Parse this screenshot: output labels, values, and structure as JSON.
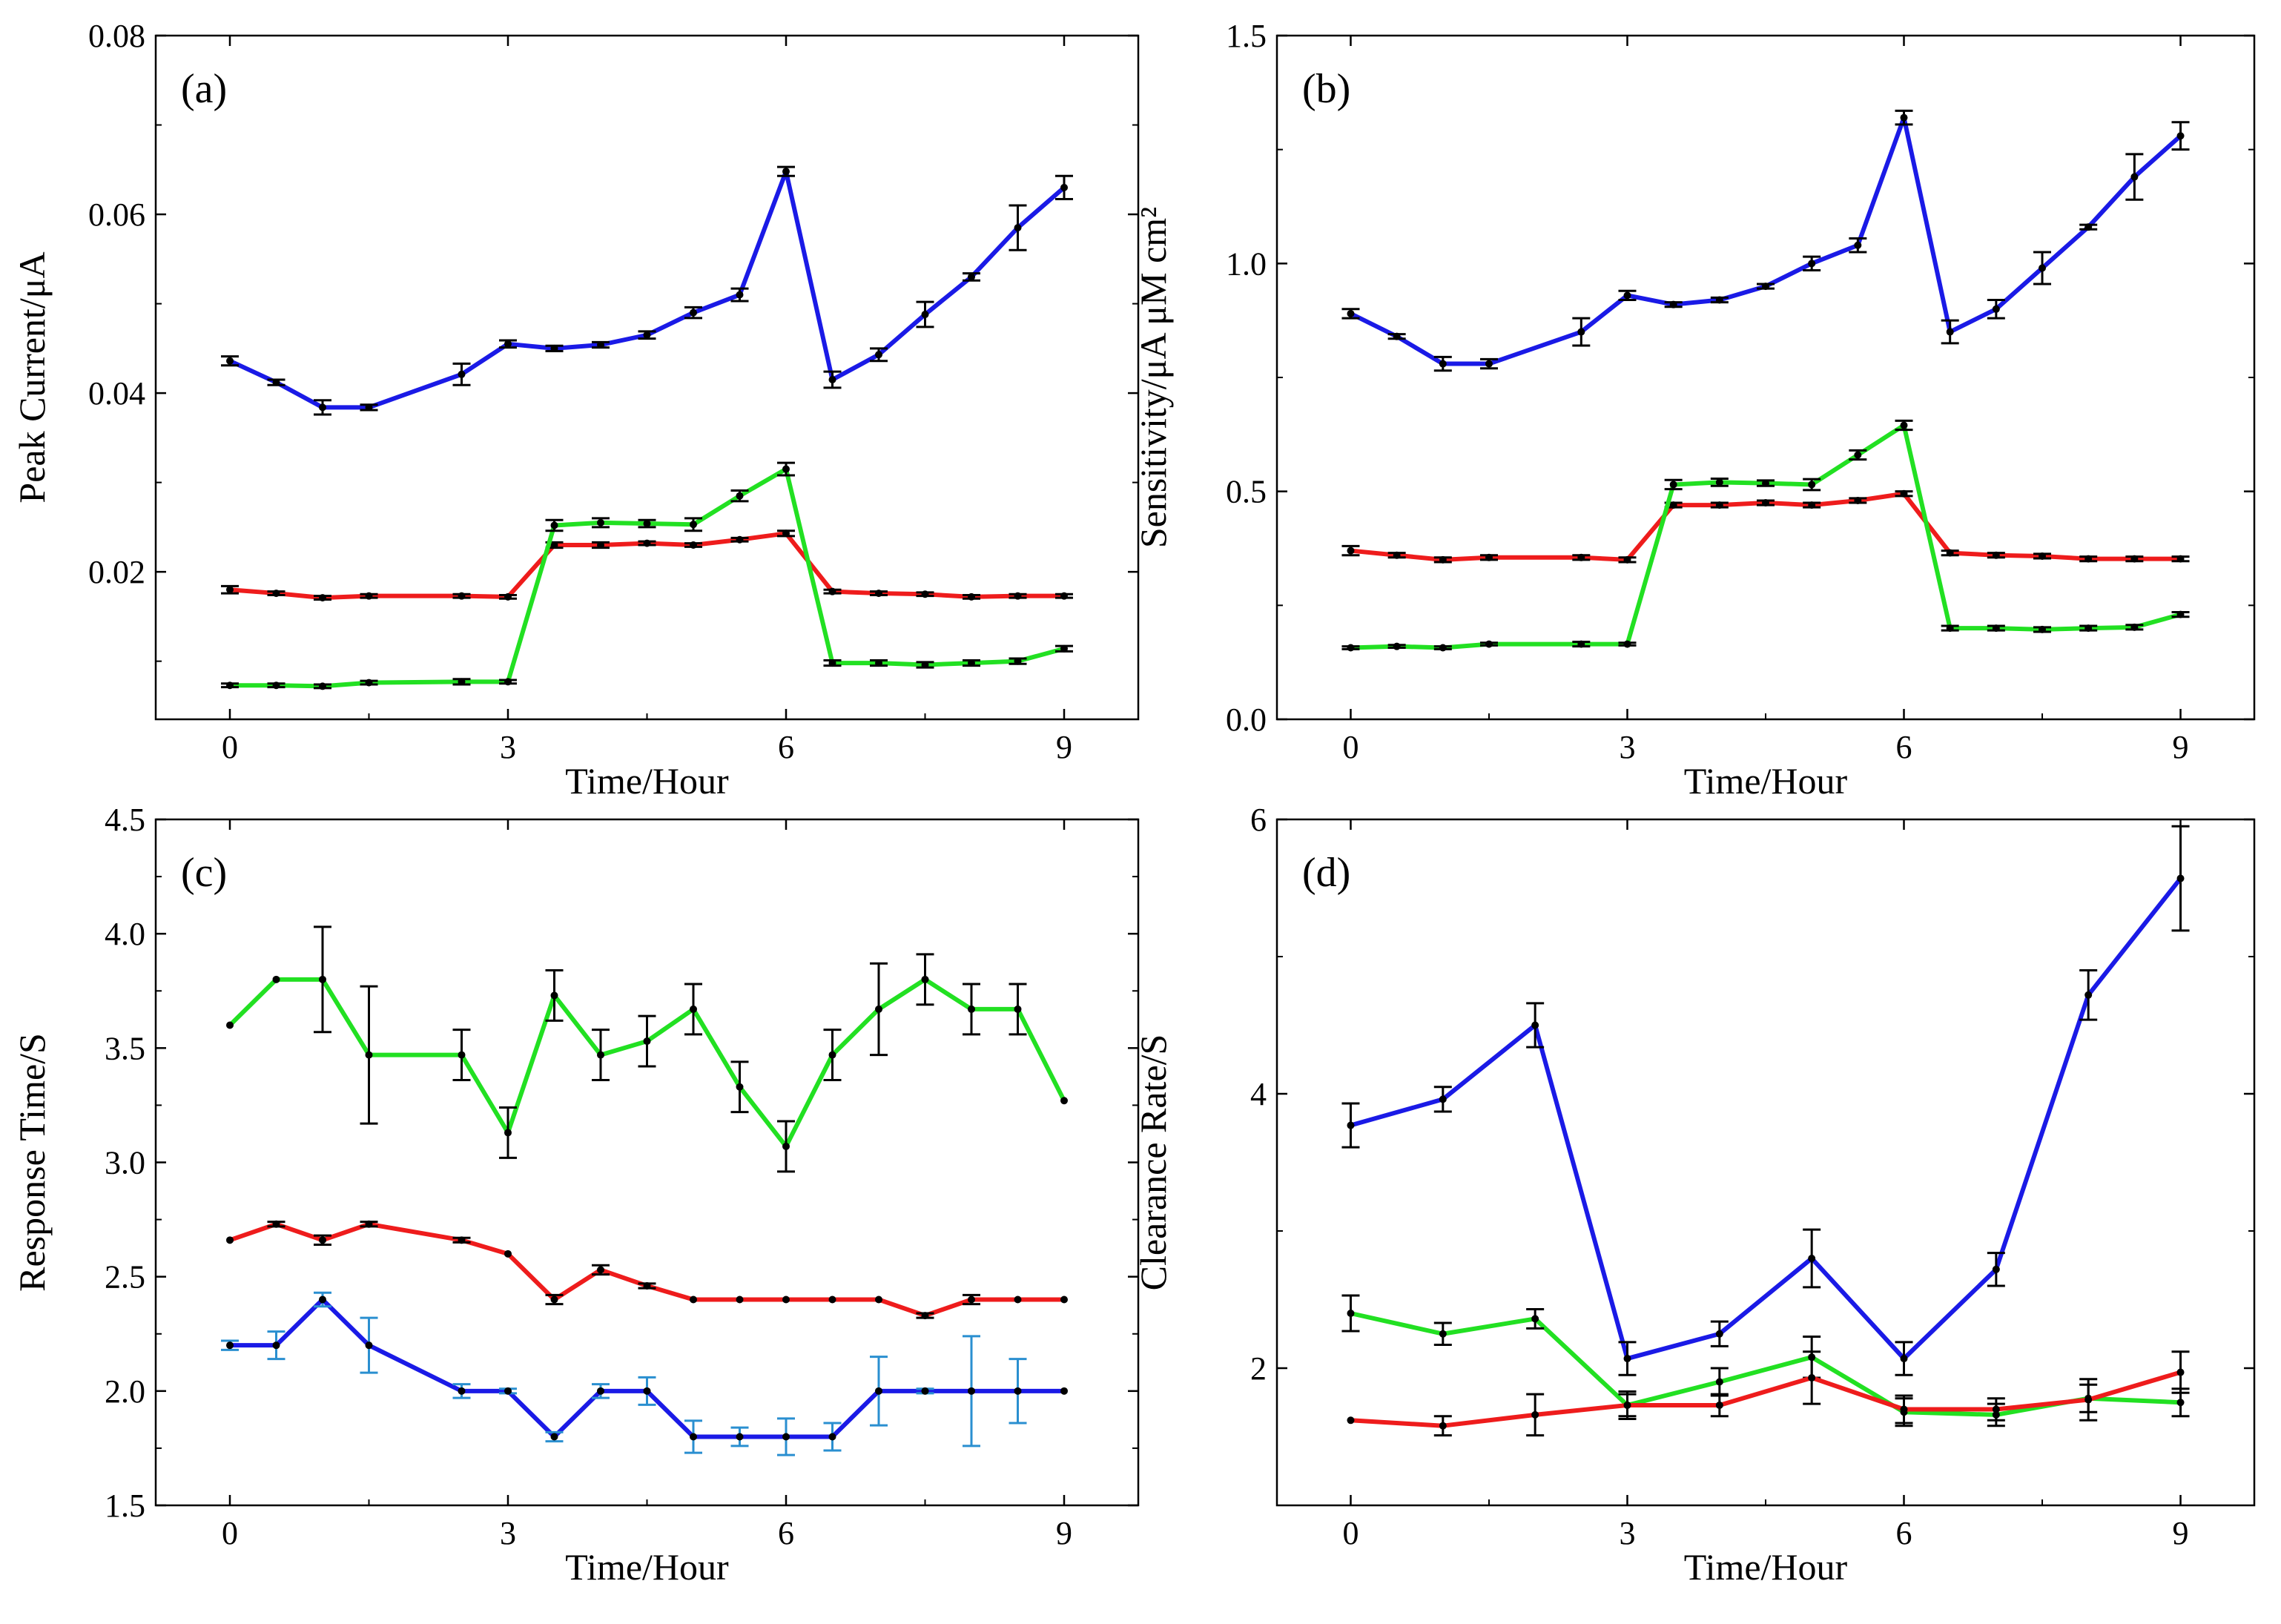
{
  "chart_data": [
    {
      "type": "line",
      "panel_label": "(a)",
      "xlabel": "Time/Hour",
      "ylabel": "Peak Current/μA",
      "xlim": [
        -0.8,
        9.8
      ],
      "ylim": [
        0.0035,
        0.08
      ],
      "xticks": [
        0,
        3,
        6,
        9
      ],
      "xtick_labels": [
        "0",
        "3",
        "6",
        "9"
      ],
      "yticks": [
        0.02,
        0.04,
        0.06,
        0.08
      ],
      "ytick_labels": [
        "0.02",
        "0.04",
        "0.06",
        "0.08"
      ],
      "error_color": "#000000",
      "series": [
        {
          "name": "blue",
          "color": "#1a1ae6",
          "x": [
            0,
            0.5,
            1,
            1.5,
            2.5,
            3,
            3.5,
            4,
            4.5,
            5,
            5.5,
            6,
            6.5,
            7,
            7.5,
            8,
            8.5,
            9
          ],
          "y": [
            0.0436,
            0.0412,
            0.0384,
            0.0384,
            0.0421,
            0.0455,
            0.045,
            0.0454,
            0.0465,
            0.049,
            0.051,
            0.0648,
            0.0415,
            0.0443,
            0.0488,
            0.053,
            0.0585,
            0.063
          ],
          "err": [
            0.0005,
            0.0003,
            0.0008,
            0.0003,
            0.0012,
            0.0004,
            0.0003,
            0.0003,
            0.0004,
            0.0006,
            0.0007,
            0.0005,
            0.0009,
            0.0007,
            0.0014,
            0.0004,
            0.0025,
            0.0013
          ]
        },
        {
          "name": "red",
          "color": "#ee1c1c",
          "x": [
            0,
            0.5,
            1,
            1.5,
            2.5,
            3,
            3.5,
            4,
            4.5,
            5,
            5.5,
            6,
            6.5,
            7,
            7.5,
            8,
            8.5,
            9
          ],
          "y": [
            0.018,
            0.0176,
            0.0171,
            0.0173,
            0.0173,
            0.0172,
            0.023,
            0.023,
            0.0232,
            0.023,
            0.0236,
            0.0243,
            0.0178,
            0.0176,
            0.0175,
            0.0172,
            0.0173,
            0.0173
          ],
          "err": [
            0.0004,
            0.0002,
            0.0002,
            0.0002,
            0.0002,
            0.0002,
            0.0003,
            0.0003,
            0.0002,
            0.0002,
            0.0002,
            0.0003,
            0.0002,
            0.0002,
            0.0002,
            0.0002,
            0.0002,
            0.0002
          ]
        },
        {
          "name": "green",
          "color": "#22e022",
          "x": [
            0,
            0.5,
            1,
            1.5,
            2.5,
            3,
            3.5,
            4,
            4.5,
            5,
            5.5,
            6,
            6.5,
            7,
            7.5,
            8,
            8.5,
            9
          ],
          "y": [
            0.0073,
            0.0073,
            0.0072,
            0.0076,
            0.0077,
            0.0077,
            0.0252,
            0.0255,
            0.0254,
            0.0253,
            0.0285,
            0.0315,
            0.0098,
            0.0098,
            0.0096,
            0.0098,
            0.01,
            0.0114
          ],
          "err": [
            0.0002,
            0.0002,
            0.0002,
            0.0002,
            0.0003,
            0.0002,
            0.0006,
            0.0005,
            0.0004,
            0.0007,
            0.0006,
            0.0007,
            0.0003,
            0.0003,
            0.0003,
            0.0003,
            0.0003,
            0.0003
          ]
        }
      ]
    },
    {
      "type": "line",
      "panel_label": "(b)",
      "xlabel": "Time/Hour",
      "ylabel": "Sensitivity/μA μM cm²",
      "xlim": [
        -0.8,
        9.8
      ],
      "ylim": [
        0,
        1.5
      ],
      "xticks": [
        0,
        3,
        6,
        9
      ],
      "xtick_labels": [
        "0",
        "3",
        "6",
        "9"
      ],
      "yticks": [
        0,
        0.5,
        1.0,
        1.5
      ],
      "ytick_labels": [
        "0.0",
        "0.5",
        "1.0",
        "1.5"
      ],
      "error_color": "#000000",
      "series": [
        {
          "name": "blue",
          "color": "#1a1ae6",
          "x": [
            0,
            0.5,
            1,
            1.5,
            2.5,
            3,
            3.5,
            4,
            4.5,
            5,
            5.5,
            6,
            6.5,
            7,
            7.5,
            8,
            8.5,
            9
          ],
          "y": [
            0.89,
            0.84,
            0.78,
            0.78,
            0.85,
            0.93,
            0.91,
            0.92,
            0.95,
            1.0,
            1.04,
            1.32,
            0.85,
            0.9,
            0.99,
            1.08,
            1.19,
            1.28
          ],
          "err": [
            0.01,
            0.005,
            0.015,
            0.01,
            0.03,
            0.01,
            0.005,
            0.005,
            0.005,
            0.015,
            0.015,
            0.015,
            0.025,
            0.02,
            0.035,
            0.005,
            0.05,
            0.03
          ]
        },
        {
          "name": "red",
          "color": "#ee1c1c",
          "x": [
            0,
            0.5,
            1,
            1.5,
            2.5,
            3,
            3.5,
            4,
            4.5,
            5,
            5.5,
            6,
            6.5,
            7,
            7.5,
            8,
            8.5,
            9
          ],
          "y": [
            0.37,
            0.36,
            0.35,
            0.355,
            0.355,
            0.35,
            0.47,
            0.47,
            0.475,
            0.47,
            0.48,
            0.495,
            0.365,
            0.36,
            0.358,
            0.352,
            0.352,
            0.352
          ],
          "err": [
            0.01,
            0.005,
            0.005,
            0.005,
            0.005,
            0.005,
            0.005,
            0.005,
            0.005,
            0.005,
            0.005,
            0.005,
            0.005,
            0.005,
            0.005,
            0.005,
            0.005,
            0.005
          ]
        },
        {
          "name": "green",
          "color": "#22e022",
          "x": [
            0,
            0.5,
            1,
            1.5,
            2.5,
            3,
            3.5,
            4,
            4.5,
            5,
            5.5,
            6,
            6.5,
            7,
            7.5,
            8,
            8.5,
            9
          ],
          "y": [
            0.157,
            0.16,
            0.157,
            0.165,
            0.165,
            0.165,
            0.515,
            0.52,
            0.518,
            0.515,
            0.58,
            0.645,
            0.2,
            0.2,
            0.197,
            0.2,
            0.202,
            0.23
          ],
          "err": [
            0.003,
            0.003,
            0.003,
            0.003,
            0.005,
            0.003,
            0.01,
            0.008,
            0.006,
            0.012,
            0.01,
            0.01,
            0.005,
            0.005,
            0.005,
            0.005,
            0.005,
            0.005
          ]
        }
      ]
    },
    {
      "type": "line",
      "panel_label": "(c)",
      "xlabel": "Time/Hour",
      "ylabel": "Response Time/S",
      "xlim": [
        -0.8,
        9.8
      ],
      "ylim": [
        1.5,
        4.5
      ],
      "xticks": [
        0,
        3,
        6,
        9
      ],
      "xtick_labels": [
        "0",
        "3",
        "6",
        "9"
      ],
      "yticks": [
        1.5,
        2.0,
        2.5,
        3.0,
        3.5,
        4.0,
        4.5
      ],
      "ytick_labels": [
        "1.5",
        "2.0",
        "2.5",
        "3.0",
        "3.5",
        "4.0",
        "4.5"
      ],
      "series": [
        {
          "name": "green",
          "color": "#22e022",
          "error_color": "#000000",
          "x": [
            0,
            0.5,
            1,
            1.5,
            2.5,
            3,
            3.5,
            4,
            4.5,
            5,
            5.5,
            6,
            6.5,
            7,
            7.5,
            8,
            8.5,
            9
          ],
          "y": [
            3.6,
            3.8,
            3.8,
            3.47,
            3.47,
            3.13,
            3.73,
            3.47,
            3.53,
            3.67,
            3.33,
            3.07,
            3.47,
            3.67,
            3.8,
            3.67,
            3.67,
            3.27
          ],
          "err": [
            0,
            0,
            0.23,
            0.3,
            0.11,
            0.11,
            0.11,
            0.11,
            0.11,
            0.11,
            0.11,
            0.11,
            0.11,
            0.2,
            0.11,
            0.11,
            0.11,
            0
          ]
        },
        {
          "name": "red",
          "color": "#ee1c1c",
          "error_color": "#000000",
          "x": [
            0,
            0.5,
            1,
            1.5,
            2.5,
            3,
            3.5,
            4,
            4.5,
            5,
            5.5,
            6,
            6.5,
            7,
            7.5,
            8,
            8.5,
            9
          ],
          "y": [
            2.66,
            2.73,
            2.66,
            2.73,
            2.66,
            2.6,
            2.4,
            2.53,
            2.46,
            2.4,
            2.4,
            2.4,
            2.4,
            2.4,
            2.33,
            2.4,
            2.4,
            2.4
          ],
          "err": [
            0,
            0.01,
            0.02,
            0.01,
            0.01,
            0,
            0.02,
            0.02,
            0.01,
            0,
            0,
            0,
            0,
            0,
            0.01,
            0.02,
            0,
            0
          ]
        },
        {
          "name": "blue",
          "color": "#1a1ae6",
          "error_color": "#2a8fd0",
          "x": [
            0,
            0.5,
            1,
            1.5,
            2.5,
            3,
            3.5,
            4,
            4.5,
            5,
            5.5,
            6,
            6.5,
            7,
            7.5,
            8,
            8.5,
            9
          ],
          "y": [
            2.2,
            2.2,
            2.4,
            2.2,
            2.0,
            2.0,
            1.8,
            2.0,
            2.0,
            1.8,
            1.8,
            1.8,
            1.8,
            2.0,
            2.0,
            2.0,
            2.0,
            2.0
          ],
          "err": [
            0.02,
            0.06,
            0.03,
            0.12,
            0.03,
            0.01,
            0.02,
            0.03,
            0.06,
            0.07,
            0.04,
            0.08,
            0.06,
            0.15,
            0.01,
            0.24,
            0.14,
            0
          ]
        }
      ]
    },
    {
      "type": "line",
      "panel_label": "(d)",
      "xlabel": "Time/Hour",
      "ylabel": "Clearance Rate/S",
      "xlim": [
        -0.8,
        9.8
      ],
      "ylim": [
        1,
        6
      ],
      "xticks": [
        0,
        3,
        6,
        9
      ],
      "xtick_labels": [
        "0",
        "3",
        "6",
        "9"
      ],
      "yticks": [
        2,
        4,
        6
      ],
      "ytick_labels": [
        "2",
        "4",
        "6"
      ],
      "error_color": "#000000",
      "series": [
        {
          "name": "blue",
          "color": "#1a1ae6",
          "x": [
            0,
            1,
            2,
            3,
            4,
            5,
            6,
            7,
            8,
            9
          ],
          "y": [
            3.77,
            3.96,
            4.5,
            2.07,
            2.25,
            2.8,
            2.07,
            2.72,
            4.72,
            5.57
          ],
          "err": [
            0.16,
            0.09,
            0.16,
            0.12,
            0.09,
            0.21,
            0.12,
            0.12,
            0.18,
            0.38
          ]
        },
        {
          "name": "green",
          "color": "#22e022",
          "x": [
            0,
            1,
            2,
            3,
            4,
            5,
            6,
            7,
            8,
            9
          ],
          "y": [
            2.4,
            2.25,
            2.36,
            1.73,
            1.9,
            2.08,
            1.68,
            1.66,
            1.78,
            1.75
          ],
          "err": [
            0.13,
            0.08,
            0.07,
            0.1,
            0.1,
            0.15,
            0.1,
            0.08,
            0.1,
            0.1
          ]
        },
        {
          "name": "red",
          "color": "#ee1c1c",
          "x": [
            0,
            1,
            2,
            3,
            4,
            5,
            6,
            7,
            8,
            9
          ],
          "y": [
            1.62,
            1.58,
            1.66,
            1.73,
            1.73,
            1.93,
            1.7,
            1.7,
            1.77,
            1.97
          ],
          "err": [
            0,
            0.07,
            0.15,
            0.08,
            0.08,
            0.19,
            0.1,
            0.08,
            0.15,
            0.15
          ]
        }
      ]
    }
  ]
}
